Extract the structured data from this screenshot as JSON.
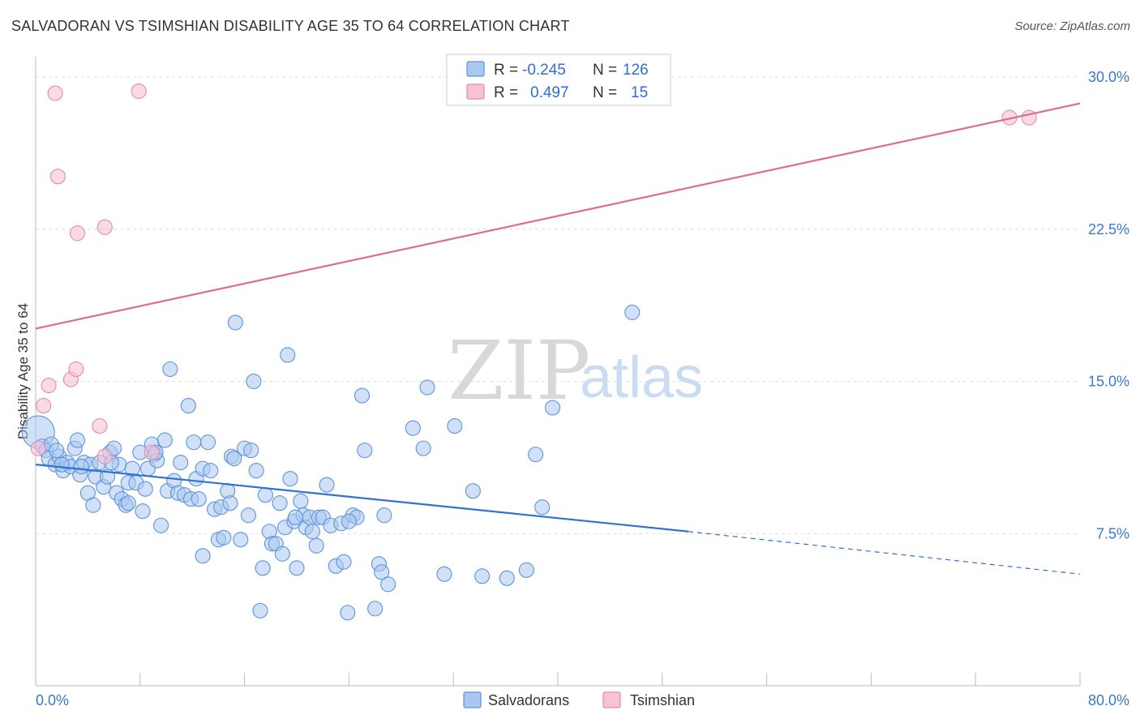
{
  "title": "SALVADORAN VS TSIMSHIAN DISABILITY AGE 35 TO 64 CORRELATION CHART",
  "source": "Source: ZipAtlas.com",
  "watermark": {
    "zip": "ZIP",
    "atlas": "atlas"
  },
  "legend_box": {
    "rows": [
      {
        "r_label": "R =",
        "r_value": "-0.245",
        "n_label": "N =",
        "n_value": "126"
      },
      {
        "r_label": "R =",
        "r_value": "0.497",
        "n_label": "N =",
        "n_value": "15"
      }
    ]
  },
  "bottom_legend": [
    "Salvadorans",
    "Tsimshian"
  ],
  "colors": {
    "salvadoran_fill": "#a9c8f0",
    "salvadoran_stroke": "#5d93db",
    "salvadoran_line": "#2f72d0",
    "tsimshian_fill": "#f7c3d4",
    "tsimshian_stroke": "#e58aaa",
    "tsimshian_line": "#e06a95",
    "grid": "#dcdcdc",
    "tick_text": "#3a78c9"
  },
  "chart_data": {
    "type": "scatter",
    "title": "SALVADORAN VS TSIMSHIAN DISABILITY AGE 35 TO 64 CORRELATION CHART",
    "xlabel": "",
    "ylabel": "Disability Age 35 to 64",
    "xlim": [
      0,
      80
    ],
    "ylim": [
      0,
      31
    ],
    "x_tick_labels": [
      "0.0%",
      "80.0%"
    ],
    "y_ticks": [
      7.5,
      15.0,
      22.5,
      30.0
    ],
    "y_tick_labels": [
      "7.5%",
      "15.0%",
      "22.5%",
      "30.0%"
    ],
    "grid": true,
    "legend_position": "top-center",
    "series": [
      {
        "name": "Salvadorans",
        "r": -0.245,
        "n": 126,
        "trend": {
          "x0": 0,
          "y0": 10.9,
          "x1": 50,
          "y1": 7.6,
          "dash_to_x": 80,
          "dash_to_y": 5.5
        },
        "points": [
          [
            0.2,
            12.5
          ],
          [
            0.5,
            11.8
          ],
          [
            0.8,
            11.6
          ],
          [
            1.0,
            11.2
          ],
          [
            1.2,
            11.9
          ],
          [
            1.5,
            10.9
          ],
          [
            1.8,
            11.3
          ],
          [
            2.1,
            10.6
          ],
          [
            2.4,
            11.0
          ],
          [
            2.7,
            10.8
          ],
          [
            3.0,
            11.7
          ],
          [
            3.2,
            12.1
          ],
          [
            3.4,
            10.4
          ],
          [
            3.7,
            11.0
          ],
          [
            4.0,
            9.5
          ],
          [
            4.2,
            10.9
          ],
          [
            4.4,
            8.9
          ],
          [
            4.6,
            10.3
          ],
          [
            4.9,
            11.0
          ],
          [
            5.2,
            9.8
          ],
          [
            5.5,
            10.3
          ],
          [
            5.7,
            11.5
          ],
          [
            6.0,
            11.7
          ],
          [
            6.2,
            9.5
          ],
          [
            6.4,
            10.9
          ],
          [
            6.6,
            9.2
          ],
          [
            6.9,
            8.9
          ],
          [
            7.1,
            10.0
          ],
          [
            7.4,
            10.7
          ],
          [
            7.7,
            10.0
          ],
          [
            8.0,
            11.5
          ],
          [
            8.2,
            8.6
          ],
          [
            8.4,
            9.7
          ],
          [
            8.6,
            10.7
          ],
          [
            8.9,
            11.9
          ],
          [
            9.1,
            11.4
          ],
          [
            9.3,
            11.1
          ],
          [
            9.6,
            7.9
          ],
          [
            9.9,
            12.1
          ],
          [
            10.1,
            9.6
          ],
          [
            10.3,
            15.6
          ],
          [
            10.6,
            10.1
          ],
          [
            10.9,
            9.5
          ],
          [
            11.1,
            11.0
          ],
          [
            11.4,
            9.4
          ],
          [
            11.7,
            13.8
          ],
          [
            11.9,
            9.2
          ],
          [
            12.1,
            12.0
          ],
          [
            12.3,
            10.2
          ],
          [
            12.5,
            9.2
          ],
          [
            12.8,
            10.7
          ],
          [
            12.8,
            6.4
          ],
          [
            13.2,
            12.0
          ],
          [
            13.4,
            10.6
          ],
          [
            13.7,
            8.7
          ],
          [
            14.0,
            7.2
          ],
          [
            14.2,
            8.8
          ],
          [
            14.4,
            7.3
          ],
          [
            14.7,
            9.6
          ],
          [
            15.0,
            11.3
          ],
          [
            15.2,
            11.2
          ],
          [
            15.3,
            17.9
          ],
          [
            15.7,
            7.2
          ],
          [
            16.0,
            11.7
          ],
          [
            16.3,
            8.4
          ],
          [
            16.5,
            11.6
          ],
          [
            16.7,
            15.0
          ],
          [
            16.9,
            10.6
          ],
          [
            17.2,
            3.7
          ],
          [
            17.4,
            5.8
          ],
          [
            17.6,
            9.4
          ],
          [
            17.9,
            7.6
          ],
          [
            18.1,
            7.0
          ],
          [
            18.4,
            7.0
          ],
          [
            18.7,
            9.0
          ],
          [
            18.9,
            6.5
          ],
          [
            19.1,
            7.8
          ],
          [
            19.3,
            16.3
          ],
          [
            19.5,
            10.2
          ],
          [
            19.8,
            8.1
          ],
          [
            20.0,
            5.8
          ],
          [
            20.3,
            9.1
          ],
          [
            20.5,
            8.4
          ],
          [
            20.7,
            7.8
          ],
          [
            21.0,
            8.3
          ],
          [
            21.2,
            7.6
          ],
          [
            21.5,
            6.9
          ],
          [
            21.7,
            8.3
          ],
          [
            22.0,
            8.3
          ],
          [
            22.3,
            9.9
          ],
          [
            22.6,
            7.9
          ],
          [
            23.0,
            5.9
          ],
          [
            23.4,
            8.0
          ],
          [
            23.6,
            6.1
          ],
          [
            23.9,
            3.6
          ],
          [
            24.3,
            8.4
          ],
          [
            24.6,
            8.3
          ],
          [
            25.0,
            14.3
          ],
          [
            25.2,
            11.6
          ],
          [
            26.0,
            3.8
          ],
          [
            26.3,
            6.0
          ],
          [
            26.5,
            5.6
          ],
          [
            26.7,
            8.4
          ],
          [
            27.0,
            5.0
          ],
          [
            28.9,
            12.7
          ],
          [
            29.7,
            11.7
          ],
          [
            30.0,
            14.7
          ],
          [
            31.3,
            5.5
          ],
          [
            32.1,
            12.8
          ],
          [
            33.5,
            9.6
          ],
          [
            34.2,
            5.4
          ],
          [
            36.1,
            5.3
          ],
          [
            37.6,
            5.7
          ],
          [
            38.3,
            11.4
          ],
          [
            38.8,
            8.8
          ],
          [
            39.6,
            13.7
          ],
          [
            45.7,
            18.4
          ],
          [
            7.1,
            9.0
          ],
          [
            3.5,
            10.8
          ],
          [
            1.6,
            11.6
          ],
          [
            5.8,
            11.0
          ],
          [
            9.2,
            11.5
          ],
          [
            14.9,
            9.0
          ],
          [
            19.9,
            8.3
          ],
          [
            24.0,
            8.1
          ],
          [
            2.0,
            10.9
          ]
        ]
      },
      {
        "name": "Tsimshian",
        "r": 0.497,
        "n": 15,
        "trend": {
          "x0": 0,
          "y0": 17.6,
          "x1": 80,
          "y1": 28.7
        },
        "points": [
          [
            0.2,
            11.7
          ],
          [
            0.6,
            13.8
          ],
          [
            1.0,
            14.8
          ],
          [
            1.5,
            29.2
          ],
          [
            1.7,
            25.1
          ],
          [
            2.7,
            15.1
          ],
          [
            3.1,
            15.6
          ],
          [
            3.2,
            22.3
          ],
          [
            4.9,
            12.8
          ],
          [
            5.3,
            11.3
          ],
          [
            5.3,
            22.6
          ],
          [
            7.9,
            29.3
          ],
          [
            8.9,
            11.5
          ],
          [
            74.6,
            28.0
          ],
          [
            76.1,
            28.0
          ]
        ]
      }
    ]
  }
}
